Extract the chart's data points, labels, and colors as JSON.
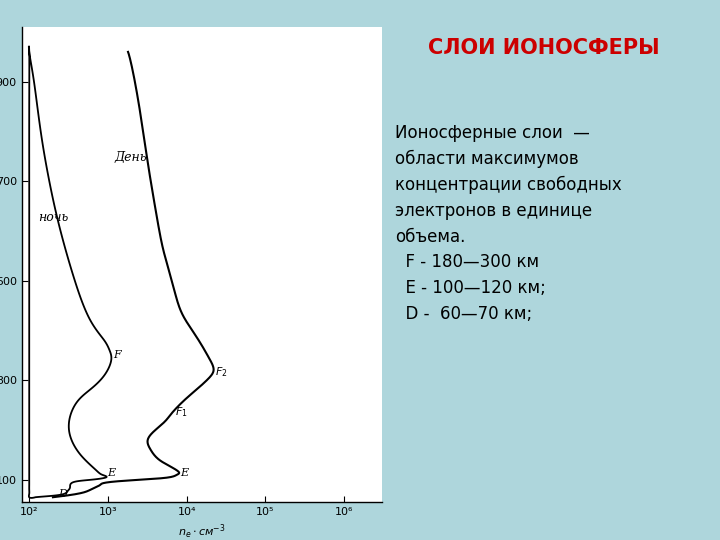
{
  "background_color": "#aed6dc",
  "plot_bg_color": "#ffffff",
  "title": "СЛОИ ИОНОСФЕРЫ",
  "title_color": "#cc0000",
  "title_fontsize": 15,
  "description_lines": [
    "Ионосферные слои  —",
    "области максимумов",
    "концентрации свободных",
    "электронов в единице",
    "объема.",
    "  F - 180—300 км",
    "  E - 100—120 км;",
    "  D -  60—70 км;"
  ],
  "desc_fontsize": 12,
  "yticks": [
    100,
    300,
    500,
    700,
    900
  ],
  "xtick_labels": [
    "10²",
    "10³",
    "10⁴",
    "10⁵",
    "10⁶"
  ],
  "xtick_vals": [
    100,
    1000,
    10000,
    100000,
    1000000
  ]
}
